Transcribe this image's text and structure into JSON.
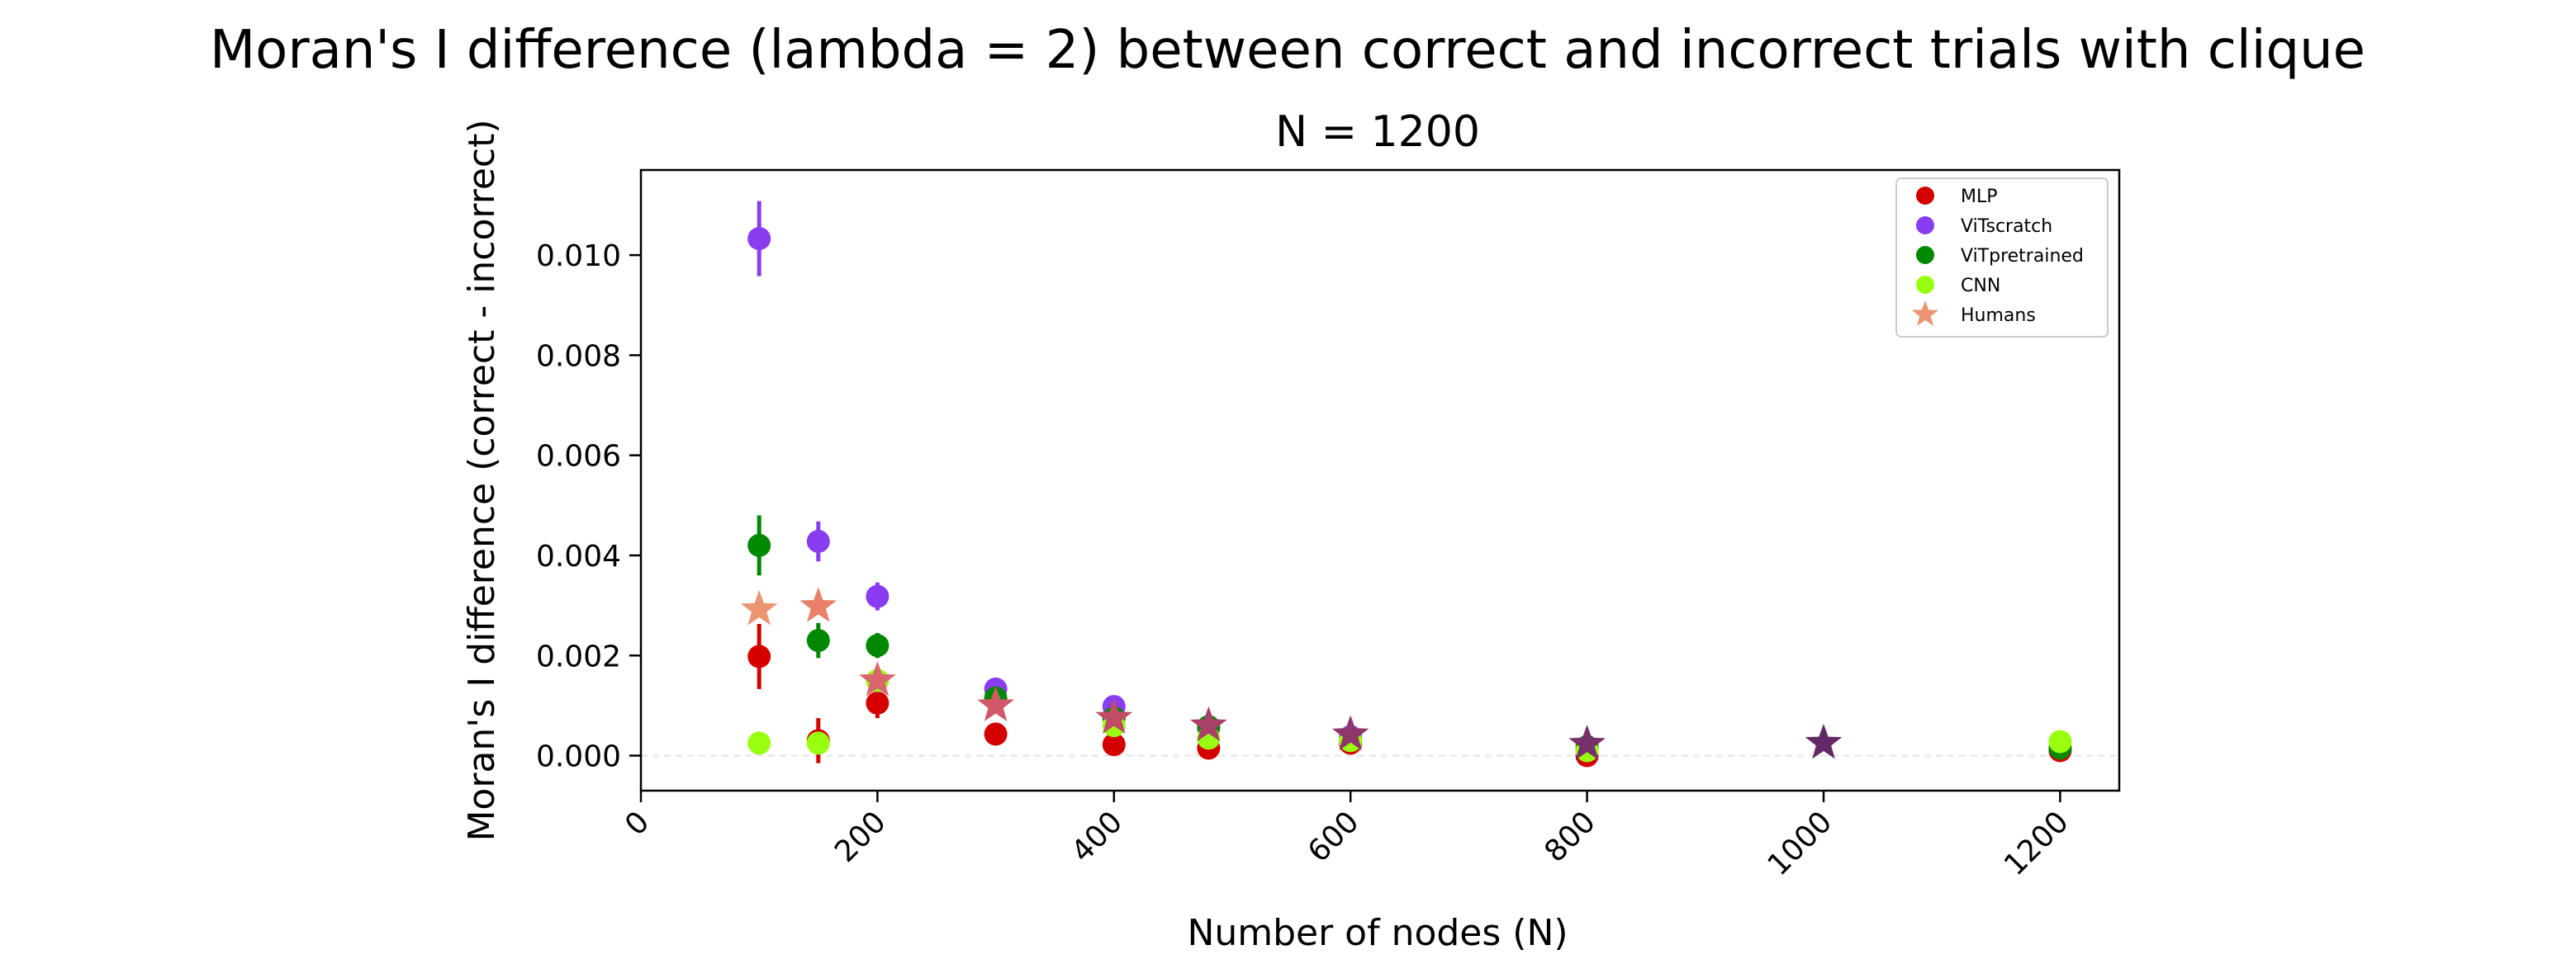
{
  "chart_data": {
    "type": "scatter",
    "title": "Moran's I difference (lambda = 2) between correct and incorrect trials with clique",
    "subtitle": "N = 1200",
    "xlabel": "Number of nodes (N)",
    "ylabel": "Moran's I difference (correct - incorrect)",
    "xlim": [
      0,
      1250
    ],
    "ylim": [
      -0.0007,
      0.0117
    ],
    "x_ticks": [
      0,
      200,
      400,
      600,
      800,
      1000,
      1200
    ],
    "x_tick_labels": [
      "0",
      "200",
      "400",
      "600",
      "800",
      "1000",
      "1200"
    ],
    "y_ticks": [
      0.0,
      0.002,
      0.004,
      0.006,
      0.008,
      0.01
    ],
    "y_tick_labels": [
      "0.000",
      "0.002",
      "0.004",
      "0.006",
      "0.008",
      "0.010"
    ],
    "legend_position": "upper-right",
    "zero_line": true,
    "series": [
      {
        "name": "MLP",
        "marker": "circle",
        "color": "#d40000",
        "points": [
          {
            "x": 100,
            "y": 0.00198,
            "err": 0.00065
          },
          {
            "x": 150,
            "y": 0.0003,
            "err": 0.00045
          },
          {
            "x": 200,
            "y": 0.00105,
            "err": 0.0003
          },
          {
            "x": 300,
            "y": 0.00043,
            "err": 5e-05
          },
          {
            "x": 400,
            "y": 0.00022,
            "err": 4e-05
          },
          {
            "x": 480,
            "y": 0.00015,
            "err": 3e-05
          },
          {
            "x": 600,
            "y": 0.00025,
            "err": 3e-05
          },
          {
            "x": 800,
            "y": 0.0,
            "err": 3e-05
          },
          {
            "x": 1200,
            "y": 0.0001,
            "err": 3e-05
          }
        ]
      },
      {
        "name": "ViTscratch",
        "marker": "circle",
        "color": "#8a3cf0",
        "points": [
          {
            "x": 100,
            "y": 0.01033,
            "err": 0.00075
          },
          {
            "x": 150,
            "y": 0.00428,
            "err": 0.0004
          },
          {
            "x": 200,
            "y": 0.00318,
            "err": 0.00028
          },
          {
            "x": 300,
            "y": 0.00133,
            "err": 0.0001
          },
          {
            "x": 400,
            "y": 0.00098,
            "err": 8e-05
          },
          {
            "x": 480,
            "y": 0.00055,
            "err": 5e-05
          },
          {
            "x": 600,
            "y": 0.00038,
            "err": 4e-05
          }
        ]
      },
      {
        "name": "ViTpretrained",
        "marker": "circle",
        "color": "#008800",
        "points": [
          {
            "x": 100,
            "y": 0.0042,
            "err": 0.0006
          },
          {
            "x": 150,
            "y": 0.0023,
            "err": 0.00035
          },
          {
            "x": 200,
            "y": 0.0022,
            "err": 0.00025
          },
          {
            "x": 300,
            "y": 0.00115,
            "err": 0.0001
          },
          {
            "x": 400,
            "y": 0.00075,
            "err": 8e-05
          },
          {
            "x": 480,
            "y": 0.00058,
            "err": 5e-05
          },
          {
            "x": 600,
            "y": 0.0003,
            "err": 4e-05
          },
          {
            "x": 800,
            "y": 0.00018,
            "err": 3e-05
          },
          {
            "x": 1200,
            "y": 0.00015,
            "err": 3e-05
          }
        ]
      },
      {
        "name": "CNN",
        "marker": "circle",
        "color": "#99ff11",
        "points": [
          {
            "x": 100,
            "y": 0.00025,
            "err": 5e-05
          },
          {
            "x": 150,
            "y": 0.00025,
            "err": 5e-05
          },
          {
            "x": 200,
            "y": 0.0015,
            "err": 5e-05
          },
          {
            "x": 400,
            "y": 0.0006,
            "err": 4e-05
          },
          {
            "x": 480,
            "y": 0.00035,
            "err": 3e-05
          },
          {
            "x": 600,
            "y": 0.0003,
            "err": 3e-05
          },
          {
            "x": 800,
            "y": 0.0001,
            "err": 3e-05
          },
          {
            "x": 1200,
            "y": 0.00028,
            "err": 3e-05
          }
        ]
      },
      {
        "name": "Humans",
        "marker": "star",
        "legend_color": "#ec9573",
        "points": [
          {
            "x": 100,
            "y": 0.00292,
            "color": "#ec9573"
          },
          {
            "x": 150,
            "y": 0.00298,
            "color": "#e8806a"
          },
          {
            "x": 200,
            "y": 0.0015,
            "color": "#d9676b"
          },
          {
            "x": 300,
            "y": 0.001,
            "color": "#d05868"
          },
          {
            "x": 400,
            "y": 0.00075,
            "color": "#c04c66"
          },
          {
            "x": 480,
            "y": 0.0006,
            "color": "#a9406a"
          },
          {
            "x": 600,
            "y": 0.00042,
            "color": "#8f366b"
          },
          {
            "x": 800,
            "y": 0.00023,
            "color": "#76306a"
          },
          {
            "x": 1000,
            "y": 0.00025,
            "color": "#652a66"
          }
        ]
      }
    ]
  }
}
